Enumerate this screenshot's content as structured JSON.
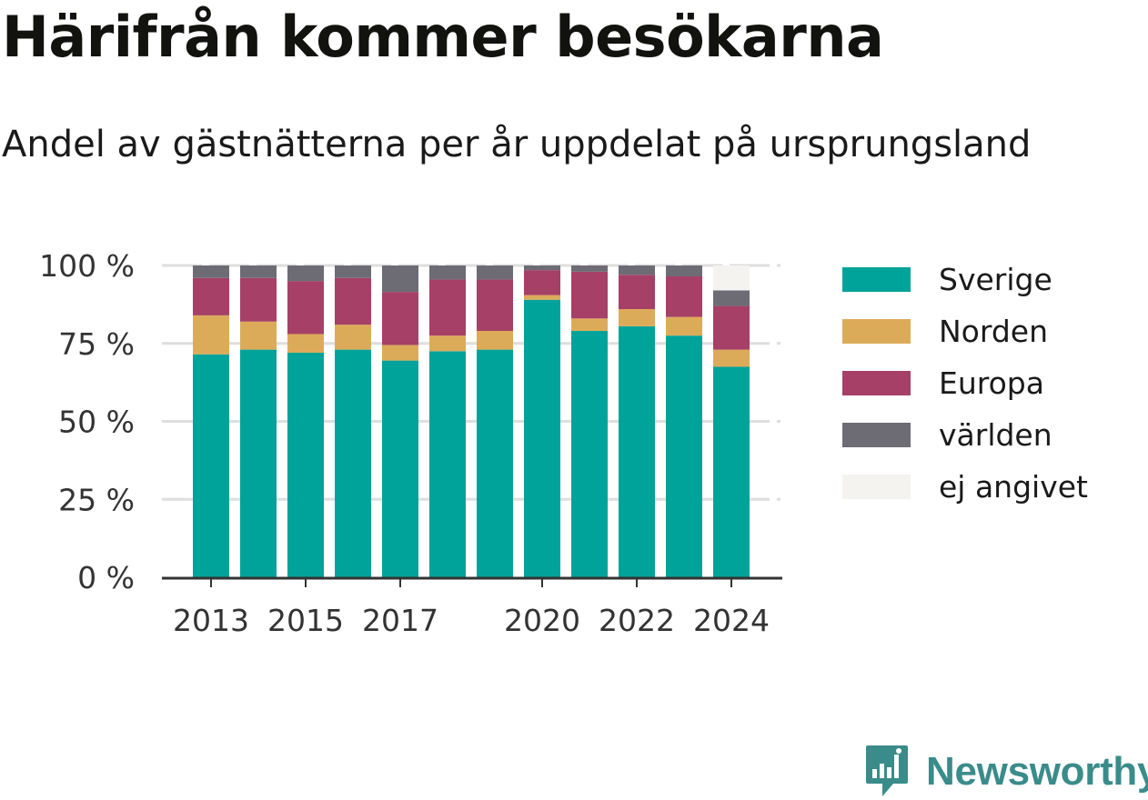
{
  "header": {
    "title": "Härifrån kommer besökarna",
    "subtitle": "Andel av gästnätterna per år uppdelat på ursprungsland"
  },
  "chart_data": {
    "type": "bar",
    "stacked": true,
    "categories": [
      "2013",
      "2014",
      "2015",
      "2016",
      "2017",
      "2018",
      "2019",
      "2020",
      "2021",
      "2022",
      "2023",
      "2024"
    ],
    "x_tick_labels": [
      "2013",
      "",
      "2015",
      "",
      "2017",
      "",
      "",
      "2020",
      "",
      "2022",
      "",
      "2024"
    ],
    "y_ticks": [
      0,
      25,
      50,
      75,
      100
    ],
    "y_tick_labels": [
      "0 %",
      "25 %",
      "50 %",
      "75 %",
      "100 %"
    ],
    "ylim": [
      0,
      100
    ],
    "grid": true,
    "legend_position": "right",
    "series": [
      {
        "name": "Sverige",
        "color": "#00a39a",
        "values": [
          71.5,
          73,
          72,
          73,
          69.5,
          72.5,
          73,
          89,
          79,
          80.5,
          77.5,
          67.5
        ]
      },
      {
        "name": "Norden",
        "color": "#dcab5a",
        "values": [
          12.5,
          9,
          6,
          8,
          5,
          5,
          6,
          1.5,
          4,
          5.5,
          6,
          5.5
        ]
      },
      {
        "name": "Europa",
        "color": "#a64066",
        "values": [
          12,
          14,
          17,
          15,
          17,
          18,
          16.5,
          8,
          15,
          11,
          13,
          14
        ]
      },
      {
        "name": "världen",
        "color": "#6d6c75",
        "values": [
          4,
          4,
          5,
          4,
          8.5,
          4.5,
          4.5,
          1.5,
          2,
          3,
          3.5,
          5
        ]
      },
      {
        "name": "ej angivet",
        "color": "#f4f3f0",
        "values": [
          0,
          0,
          0,
          0,
          0,
          0,
          0,
          0,
          0,
          0,
          0,
          8
        ]
      }
    ]
  },
  "branding": {
    "name": "Newsworthy",
    "logo_icon": "newsworthy-logo-icon",
    "color": "#3a8c8a"
  }
}
